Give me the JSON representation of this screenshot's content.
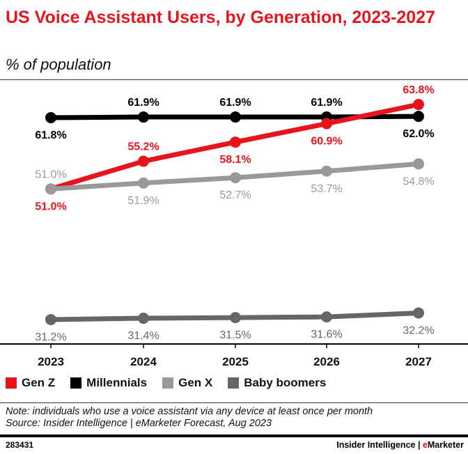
{
  "chart_data": {
    "type": "line",
    "title": "US Voice Assistant Users, by Generation, 2023-2027",
    "subtitle": "% of population",
    "categories": [
      "2023",
      "2024",
      "2025",
      "2026",
      "2027"
    ],
    "series": [
      {
        "name": "Gen Z",
        "color": "#e8141c",
        "values": [
          51.0,
          55.2,
          58.1,
          60.9,
          63.8
        ],
        "labels": [
          "51.0%",
          "55.2%",
          "58.1%",
          "60.9%",
          "63.8%"
        ]
      },
      {
        "name": "Millennials",
        "color": "#000000",
        "values": [
          61.8,
          61.9,
          61.9,
          61.9,
          62.0
        ],
        "labels": [
          "61.8%",
          "61.9%",
          "61.9%",
          "61.9%",
          "62.0%"
        ]
      },
      {
        "name": "Gen X",
        "color": "#999999",
        "values": [
          51.0,
          51.9,
          52.7,
          53.7,
          54.8
        ],
        "labels": [
          "51.0%",
          "51.9%",
          "52.7%",
          "53.7%",
          "54.8%"
        ]
      },
      {
        "name": "Baby boomers",
        "color": "#666666",
        "values": [
          31.2,
          31.4,
          31.5,
          31.6,
          32.2
        ],
        "labels": [
          "31.2%",
          "31.4%",
          "31.5%",
          "31.6%",
          "32.2%"
        ]
      }
    ],
    "ylim": [
      27.5,
      67.5
    ],
    "grid": false,
    "legend": "bottom"
  },
  "note": "Note: individuals who use a voice assistant via any device at least once per month",
  "source": "Source: Insider Intelligence | eMarketer Forecast, Aug 2023",
  "chart_id": "283431",
  "brand": {
    "part1": "Insider Intelligence | ",
    "part2_accent": "e",
    "part2_rest": "Marketer"
  }
}
